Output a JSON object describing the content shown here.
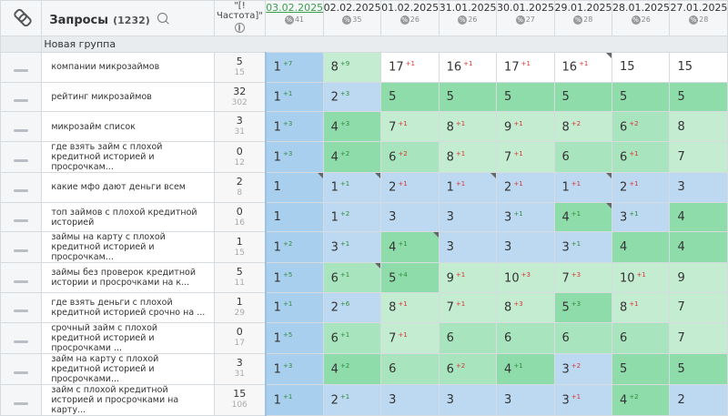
{
  "header": {
    "title": "Запросы",
    "count": "(1232)",
    "freq_label": "\"[!Частота]\"",
    "dates": [
      {
        "label": "03.02.2025",
        "pct": "41",
        "active": true
      },
      {
        "label": "02.02.2025",
        "pct": "35"
      },
      {
        "label": "01.02.2025",
        "pct": "26"
      },
      {
        "label": "31.01.2025",
        "pct": "26"
      },
      {
        "label": "30.01.2025",
        "pct": "27"
      },
      {
        "label": "29.01.2025",
        "pct": "28"
      },
      {
        "label": "28.01.2025",
        "pct": "26"
      },
      {
        "label": "27.01.2025",
        "pct": "28"
      }
    ],
    "pct_symbol": "%"
  },
  "group": {
    "name": "Новая группа"
  },
  "rows": [
    {
      "kw": "компании микрозаймов",
      "freq": "5",
      "sub": "15",
      "cells": [
        [
          "1",
          "+7",
          "b1",
          0
        ],
        [
          "8",
          "+9",
          "g3",
          0
        ],
        [
          "17",
          "+1",
          "w",
          0
        ],
        [
          "16",
          "+1",
          "w",
          0
        ],
        [
          "17",
          "+1",
          "w",
          0
        ],
        [
          "16",
          "+1",
          "w",
          1
        ],
        [
          "15",
          "",
          "w",
          0
        ],
        [
          "15",
          "",
          "w",
          0
        ]
      ]
    },
    {
      "kw": "рейтинг микрозаймов",
      "freq": "32",
      "sub": "302",
      "cells": [
        [
          "1",
          "+1",
          "b1",
          0
        ],
        [
          "2",
          "+3",
          "b2",
          0
        ],
        [
          "5",
          "",
          "g1",
          0
        ],
        [
          "5",
          "",
          "g1",
          0
        ],
        [
          "5",
          "",
          "g1",
          0
        ],
        [
          "5",
          "",
          "g1",
          0
        ],
        [
          "5",
          "",
          "g1",
          0
        ],
        [
          "5",
          "",
          "g1",
          0
        ]
      ]
    },
    {
      "kw": "микрозайм список",
      "freq": "3",
      "sub": "31",
      "cells": [
        [
          "1",
          "+3",
          "b1",
          0
        ],
        [
          "4",
          "+3",
          "g1",
          0
        ],
        [
          "7",
          "+1",
          "g3",
          0
        ],
        [
          "8",
          "+1",
          "g3",
          0
        ],
        [
          "9",
          "+1",
          "g3",
          0
        ],
        [
          "8",
          "+2",
          "g3",
          0
        ],
        [
          "6",
          "+2",
          "g2",
          0
        ],
        [
          "8",
          "",
          "g3",
          0
        ]
      ]
    },
    {
      "kw": "где взять займ с плохой кредитной историей и просрочкам...",
      "freq": "0",
      "sub": "12",
      "cells": [
        [
          "1",
          "+3",
          "b1",
          0
        ],
        [
          "4",
          "+2",
          "g1",
          0
        ],
        [
          "6",
          "+2",
          "g2",
          0
        ],
        [
          "8",
          "+1",
          "g3",
          0
        ],
        [
          "7",
          "+1",
          "g3",
          0
        ],
        [
          "6",
          "",
          "g2",
          0
        ],
        [
          "6",
          "+1",
          "g2",
          0
        ],
        [
          "7",
          "",
          "g3",
          0
        ]
      ]
    },
    {
      "kw": "какие мфо дают деньги всем",
      "freq": "2",
      "sub": "8",
      "cells": [
        [
          "1",
          "",
          "b1",
          1
        ],
        [
          "1",
          "+1",
          "b2",
          1
        ],
        [
          "2",
          "+1",
          "b2",
          0
        ],
        [
          "1",
          "+1",
          "b2",
          1
        ],
        [
          "2",
          "+1",
          "b2",
          0
        ],
        [
          "1",
          "+1",
          "b2",
          1
        ],
        [
          "2",
          "+1",
          "b2",
          0
        ],
        [
          "3",
          "",
          "b2",
          0
        ]
      ]
    },
    {
      "kw": "топ займов с плохой кредитной историей",
      "freq": "0",
      "sub": "16",
      "cells": [
        [
          "1",
          "",
          "b1",
          0
        ],
        [
          "1",
          "+2",
          "b2",
          0
        ],
        [
          "3",
          "",
          "b2",
          0
        ],
        [
          "3",
          "",
          "b2",
          0
        ],
        [
          "3",
          "+1",
          "b2",
          0
        ],
        [
          "4",
          "+1",
          "g1",
          1
        ],
        [
          "3",
          "+1",
          "b2",
          0
        ],
        [
          "4",
          "",
          "g1",
          0
        ]
      ]
    },
    {
      "kw": "займы на карту с плохой кредитной историей и просрочкам...",
      "freq": "1",
      "sub": "15",
      "cells": [
        [
          "1",
          "+2",
          "b1",
          0
        ],
        [
          "3",
          "+1",
          "b2",
          0
        ],
        [
          "4",
          "+1",
          "g1",
          1
        ],
        [
          "3",
          "",
          "b2",
          0
        ],
        [
          "3",
          "",
          "b2",
          0
        ],
        [
          "3",
          "+1",
          "b2",
          0
        ],
        [
          "4",
          "",
          "g1",
          0
        ],
        [
          "4",
          "",
          "g1",
          0
        ]
      ]
    },
    {
      "kw": "займы без проверок кредитной истории и просрочками на к...",
      "freq": "5",
      "sub": "11",
      "cells": [
        [
          "1",
          "+5",
          "b1",
          0
        ],
        [
          "6",
          "+1",
          "g2",
          1
        ],
        [
          "5",
          "+4",
          "g1",
          0
        ],
        [
          "9",
          "+1",
          "g3",
          0
        ],
        [
          "10",
          "+3",
          "g3",
          0
        ],
        [
          "7",
          "+3",
          "g3",
          0
        ],
        [
          "10",
          "+1",
          "g3",
          0
        ],
        [
          "9",
          "",
          "g3",
          0
        ]
      ]
    },
    {
      "kw": "где взять деньги с плохой кредитной историей срочно на ...",
      "freq": "1",
      "sub": "29",
      "cells": [
        [
          "1",
          "+1",
          "b1",
          0
        ],
        [
          "2",
          "+6",
          "b2",
          0
        ],
        [
          "8",
          "+1",
          "g3",
          0
        ],
        [
          "7",
          "+1",
          "g3",
          0
        ],
        [
          "8",
          "+3",
          "g3",
          0
        ],
        [
          "5",
          "+3",
          "g1",
          0
        ],
        [
          "8",
          "+1",
          "g3",
          0
        ],
        [
          "7",
          "",
          "g3",
          0
        ]
      ]
    },
    {
      "kw": "срочный займ с плохой кредитной историей и просрочками ...",
      "freq": "0",
      "sub": "17",
      "cells": [
        [
          "1",
          "+5",
          "b1",
          0
        ],
        [
          "6",
          "+1",
          "g2",
          0
        ],
        [
          "7",
          "+1",
          "g3",
          0
        ],
        [
          "6",
          "",
          "g2",
          0
        ],
        [
          "6",
          "",
          "g2",
          0
        ],
        [
          "6",
          "",
          "g2",
          0
        ],
        [
          "6",
          "",
          "g2",
          0
        ],
        [
          "7",
          "",
          "g3",
          0
        ]
      ]
    },
    {
      "kw": "займ на карту с плохой кредитной историей и просрочками...",
      "freq": "3",
      "sub": "31",
      "cells": [
        [
          "1",
          "+3",
          "b1",
          0
        ],
        [
          "4",
          "+2",
          "g1",
          0
        ],
        [
          "6",
          "",
          "g2",
          0
        ],
        [
          "6",
          "+2",
          "g2",
          0
        ],
        [
          "4",
          "+1",
          "g1",
          0
        ],
        [
          "3",
          "+2",
          "b2",
          0
        ],
        [
          "5",
          "",
          "g1",
          0
        ],
        [
          "5",
          "",
          "g1",
          0
        ]
      ]
    },
    {
      "kw": "займ с плохой кредитной историей и просрочками на карту...",
      "freq": "15",
      "sub": "106",
      "cells": [
        [
          "1",
          "+1",
          "b1",
          0
        ],
        [
          "2",
          "+1",
          "b2",
          0
        ],
        [
          "3",
          "",
          "b2",
          0
        ],
        [
          "3",
          "",
          "b2",
          0
        ],
        [
          "3",
          "",
          "b2",
          0
        ],
        [
          "3",
          "+1",
          "b2",
          0
        ],
        [
          "4",
          "+2",
          "g1",
          0
        ],
        [
          "2",
          "",
          "b2",
          0
        ]
      ]
    }
  ],
  "colors": {
    "blue": "#a9cfee",
    "green": "#8fdcab",
    "accent": "#3aa04b"
  },
  "icons": {
    "link": "link-icon",
    "search": "search-icon",
    "globe": "globe-icon",
    "percent": "percent-icon",
    "dash": "drag-handle-icon"
  }
}
